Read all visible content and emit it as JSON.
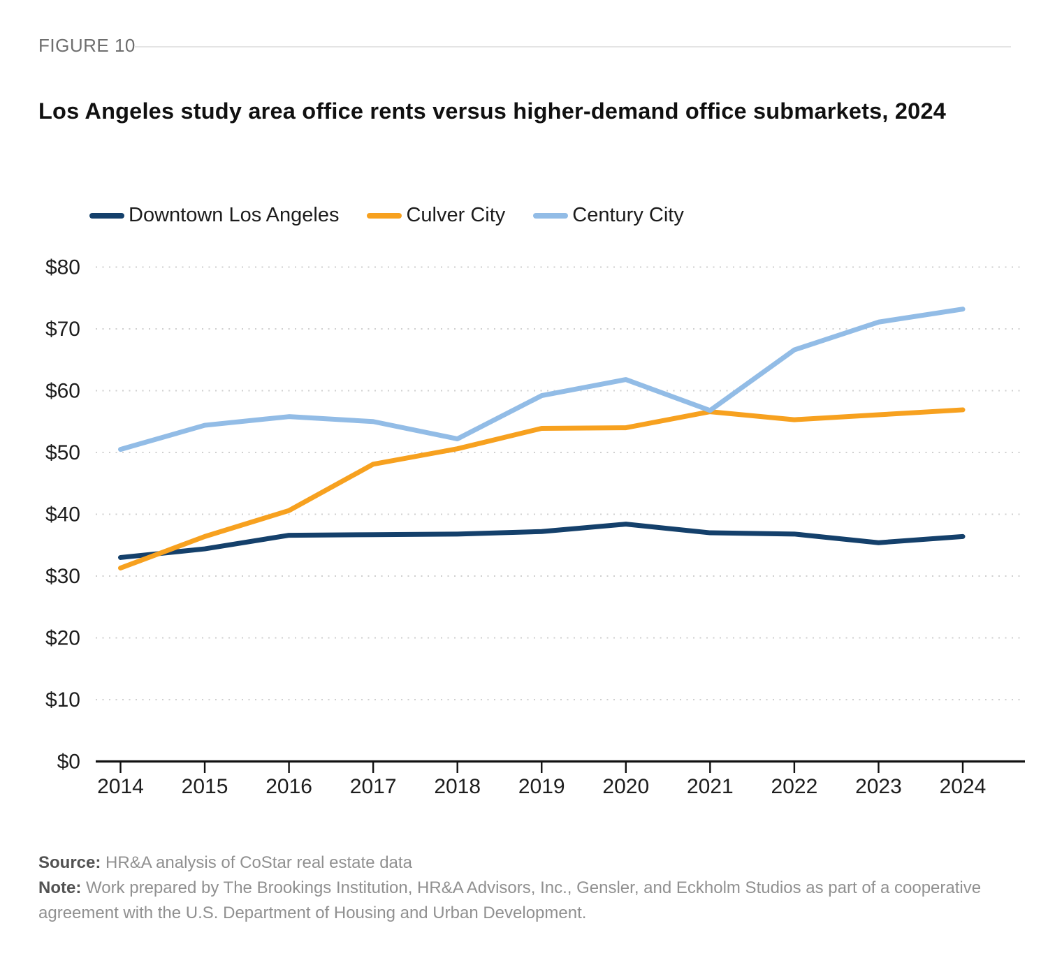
{
  "figure_label": "FIGURE 10",
  "title": "Los Angeles study area office rents versus higher-demand office submarkets, 2024",
  "source": {
    "label": "Source:",
    "text": "HR&A analysis of CoStar real estate data"
  },
  "note": {
    "label": "Note:",
    "text": "Work prepared by The Brookings Institution, HR&A Advisors, Inc., Gensler, and Eckholm Studios as part of a cooperative agreement with the U.S. Department of Housing and Urban Development."
  },
  "chart_data": {
    "type": "line",
    "x": [
      2014,
      2015,
      2016,
      2017,
      2018,
      2019,
      2020,
      2021,
      2022,
      2023,
      2024
    ],
    "series": [
      {
        "name": "Downtown Los Angeles",
        "color": "#14406B",
        "values": [
          33.0,
          34.4,
          36.6,
          36.7,
          36.8,
          37.2,
          38.4,
          37.0,
          36.8,
          35.4,
          36.4
        ]
      },
      {
        "name": "Culver City",
        "color": "#F7A11F",
        "values": [
          31.3,
          36.4,
          40.6,
          48.1,
          50.6,
          53.9,
          54.0,
          56.6,
          55.3,
          56.1,
          56.9
        ]
      },
      {
        "name": "Century City",
        "color": "#92BCE6",
        "values": [
          50.5,
          54.4,
          55.8,
          55.0,
          52.2,
          59.2,
          61.8,
          56.8,
          66.6,
          71.1,
          73.2
        ]
      }
    ],
    "y_ticks": [
      "$0",
      "$10",
      "$20",
      "$30",
      "$40",
      "$50",
      "$60",
      "$70",
      "$80"
    ],
    "ylim": [
      0,
      80
    ],
    "ylabel": "",
    "xlabel": "",
    "grid": "dotted-horizontal",
    "legend_position": "top-left",
    "axis_color": "#111111",
    "grid_color": "#cfcfcf",
    "tick_label_color": "#1d1d1d"
  }
}
